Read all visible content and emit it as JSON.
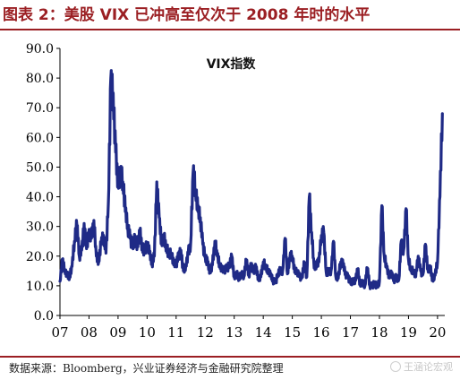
{
  "figure": {
    "title": "图表 2：美股 VIX 已冲高至仅次于 2008 年时的水平",
    "source": "数据来源：Bloomberg，兴业证券经济与金融研究院整理",
    "watermark": "王涵论宏观"
  },
  "chart_data": {
    "type": "line",
    "title": "VIX指数",
    "xlabel": "",
    "ylabel": "",
    "ylim": [
      0,
      90
    ],
    "yticks": [
      "0.0",
      "10.0",
      "20.0",
      "30.0",
      "40.0",
      "50.0",
      "60.0",
      "70.0",
      "80.0",
      "90.0"
    ],
    "xticks": [
      "07",
      "08",
      "09",
      "10",
      "11",
      "12",
      "13",
      "14",
      "15",
      "16",
      "17",
      "18",
      "19",
      "20"
    ],
    "grid": false,
    "legend": "none",
    "line_color": "#1f2a86",
    "series": [
      {
        "x": [
          "2007-01",
          "2007-02",
          "2007-03",
          "2007-04",
          "2007-05",
          "2007-06",
          "2007-07",
          "2007-08",
          "2007-09",
          "2007-10",
          "2007-11",
          "2007-12",
          "2008-01",
          "2008-02",
          "2008-03",
          "2008-04",
          "2008-05",
          "2008-06",
          "2008-07",
          "2008-08",
          "2008-09",
          "2008-10",
          "2008-11",
          "2008-12",
          "2009-01",
          "2009-02",
          "2009-03",
          "2009-04",
          "2009-05",
          "2009-06",
          "2009-07",
          "2009-08",
          "2009-09",
          "2009-10",
          "2009-11",
          "2009-12",
          "2010-01",
          "2010-02",
          "2010-03",
          "2010-04",
          "2010-05",
          "2010-06",
          "2010-07",
          "2010-08",
          "2010-09",
          "2010-10",
          "2010-11",
          "2010-12",
          "2011-01",
          "2011-02",
          "2011-03",
          "2011-04",
          "2011-05",
          "2011-06",
          "2011-07",
          "2011-08",
          "2011-09",
          "2011-10",
          "2011-11",
          "2011-12",
          "2012-01",
          "2012-02",
          "2012-03",
          "2012-04",
          "2012-05",
          "2012-06",
          "2012-07",
          "2012-08",
          "2012-09",
          "2012-10",
          "2012-11",
          "2012-12",
          "2013-01",
          "2013-02",
          "2013-03",
          "2013-04",
          "2013-05",
          "2013-06",
          "2013-07",
          "2013-08",
          "2013-09",
          "2013-10",
          "2013-11",
          "2013-12",
          "2014-01",
          "2014-02",
          "2014-03",
          "2014-04",
          "2014-05",
          "2014-06",
          "2014-07",
          "2014-08",
          "2014-09",
          "2014-10",
          "2014-11",
          "2014-12",
          "2015-01",
          "2015-02",
          "2015-03",
          "2015-04",
          "2015-05",
          "2015-06",
          "2015-07",
          "2015-08",
          "2015-09",
          "2015-10",
          "2015-11",
          "2015-12",
          "2016-01",
          "2016-02",
          "2016-03",
          "2016-04",
          "2016-05",
          "2016-06",
          "2016-07",
          "2016-08",
          "2016-09",
          "2016-10",
          "2016-11",
          "2016-12",
          "2017-01",
          "2017-02",
          "2017-03",
          "2017-04",
          "2017-05",
          "2017-06",
          "2017-07",
          "2017-08",
          "2017-09",
          "2017-10",
          "2017-11",
          "2017-12",
          "2018-01",
          "2018-02",
          "2018-03",
          "2018-04",
          "2018-05",
          "2018-06",
          "2018-07",
          "2018-08",
          "2018-09",
          "2018-10",
          "2018-11",
          "2018-12",
          "2019-01",
          "2019-02",
          "2019-03",
          "2019-04",
          "2019-05",
          "2019-06",
          "2019-07",
          "2019-08",
          "2019-09",
          "2019-10",
          "2019-11",
          "2019-12",
          "2020-01",
          "2020-02",
          "2020-03"
        ],
        "values": [
          11.5,
          19.0,
          15.5,
          13.5,
          13.0,
          16.5,
          25.0,
          30.5,
          20.0,
          22.0,
          31.0,
          22.5,
          29.0,
          26.0,
          32.0,
          20.0,
          18.0,
          24.0,
          27.0,
          21.0,
          38.0,
          80.0,
          75.0,
          55.0,
          45.0,
          47.0,
          45.0,
          35.0,
          30.0,
          26.0,
          24.0,
          26.0,
          24.0,
          28.0,
          23.0,
          21.0,
          24.0,
          21.0,
          17.5,
          20.0,
          45.0,
          33.0,
          25.0,
          26.0,
          23.0,
          20.0,
          21.0,
          17.0,
          17.5,
          20.0,
          22.0,
          15.0,
          17.0,
          21.0,
          24.0,
          48.0,
          42.0,
          35.0,
          33.0,
          24.0,
          20.0,
          18.0,
          15.0,
          17.0,
          25.0,
          20.0,
          17.0,
          15.0,
          15.5,
          16.0,
          17.0,
          20.0,
          13.0,
          14.0,
          12.5,
          14.0,
          13.0,
          18.5,
          13.5,
          17.0,
          15.0,
          16.5,
          12.5,
          13.0,
          18.0,
          16.0,
          15.0,
          13.5,
          12.0,
          11.0,
          14.0,
          15.5,
          15.0,
          26.0,
          14.0,
          19.5,
          20.0,
          14.5,
          15.0,
          13.0,
          13.0,
          18.0,
          13.0,
          40.0,
          28.0,
          16.0,
          17.0,
          18.0,
          27.0,
          28.0,
          14.5,
          15.0,
          15.0,
          25.0,
          13.0,
          12.5,
          18.0,
          17.0,
          14.0,
          13.0,
          11.5,
          11.5,
          12.0,
          15.5,
          10.5,
          11.0,
          10.0,
          16.0,
          10.0,
          10.0,
          11.0,
          10.0,
          11.5,
          37.0,
          20.0,
          16.0,
          13.0,
          14.0,
          12.0,
          13.0,
          12.0,
          25.0,
          22.0,
          36.0,
          19.0,
          15.0,
          15.0,
          13.0,
          20.0,
          15.0,
          14.0,
          24.0,
          15.5,
          16.0,
          12.0,
          13.5,
          18.0,
          40.0,
          68.0
        ]
      }
    ]
  }
}
